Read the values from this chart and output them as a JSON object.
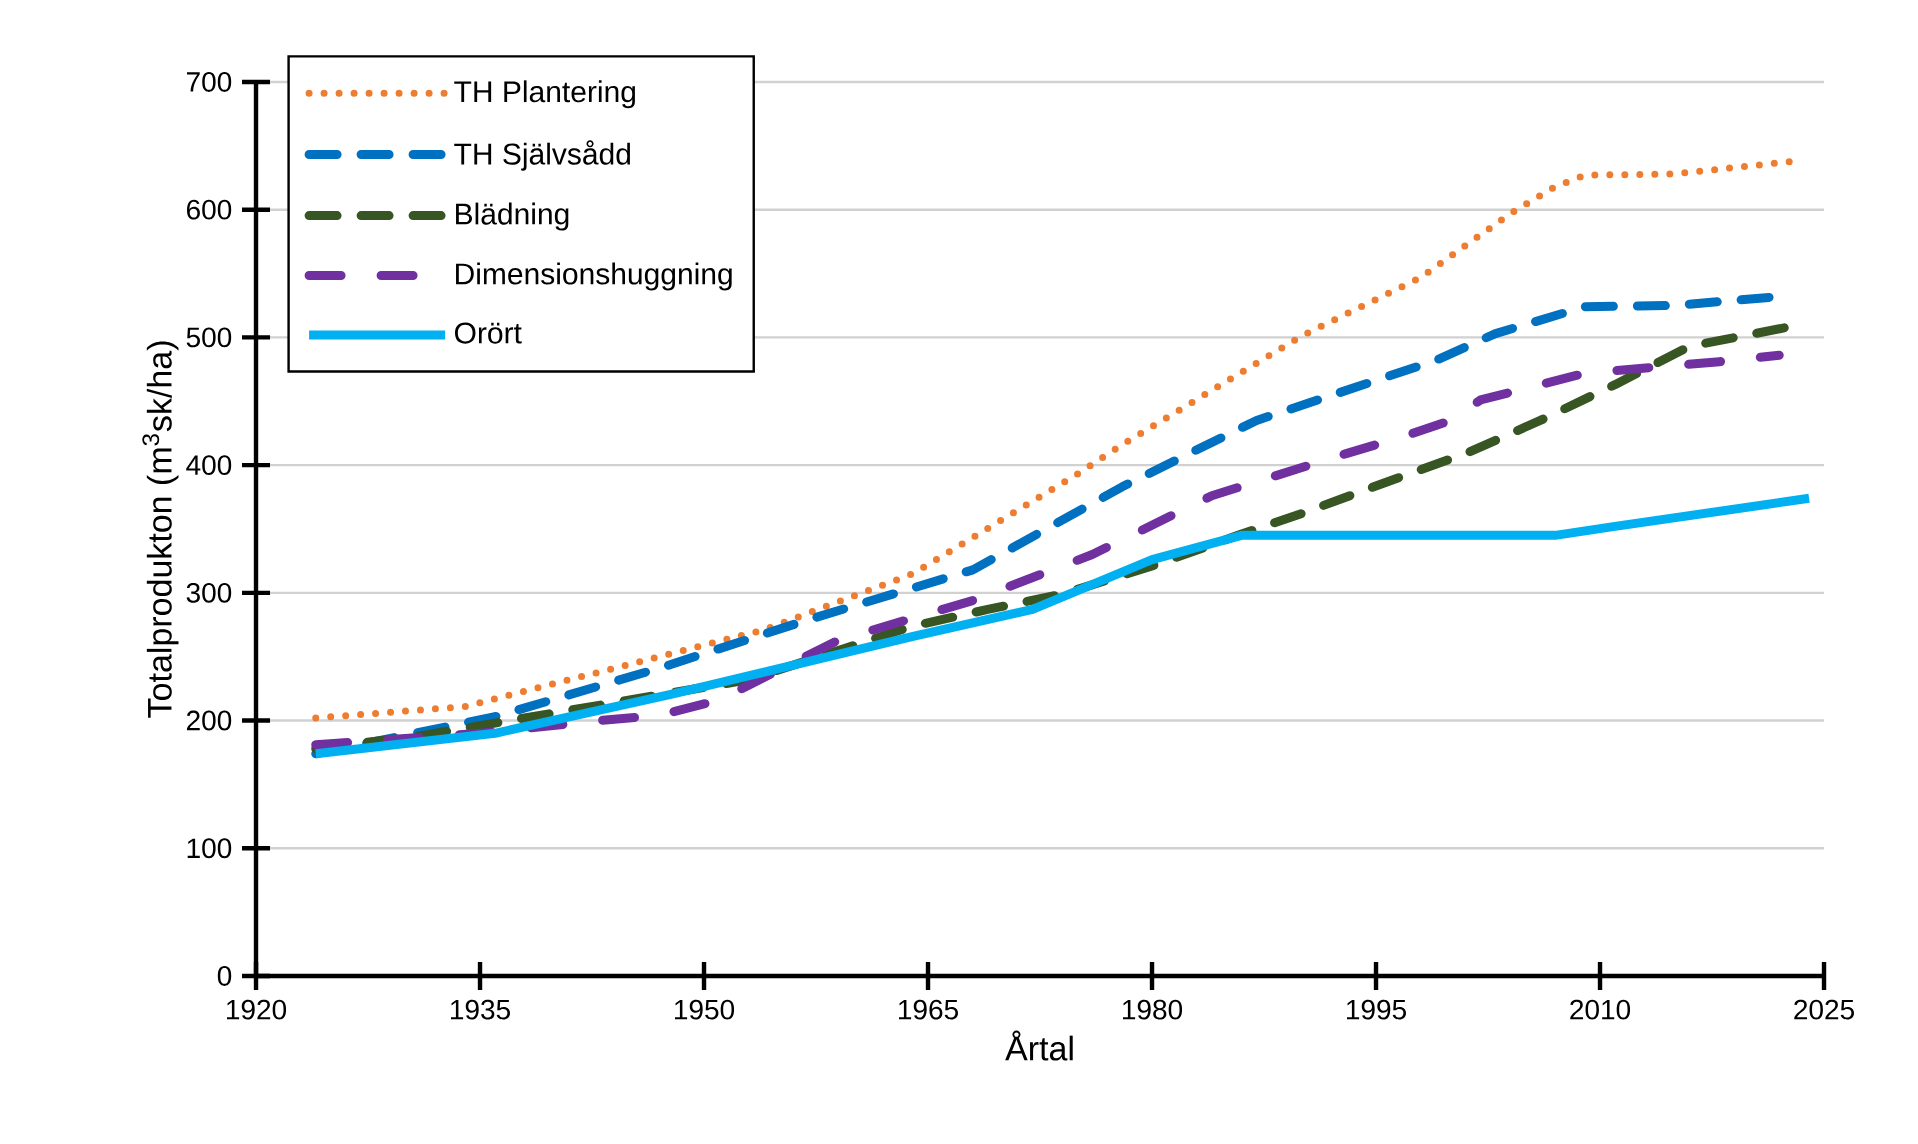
{
  "chart_data": {
    "type": "line",
    "xlabel": "Årtal",
    "ylabel": "Totalprodukton (m$^{3}$sk/ha)",
    "xlim": [
      1920,
      2025
    ],
    "xticks": [
      1920,
      1935,
      1950,
      1965,
      1980,
      1995,
      2010,
      2025
    ],
    "ylim": [
      0,
      700
    ],
    "yticks": [
      0,
      100,
      200,
      300,
      400,
      500,
      600,
      700
    ],
    "grid": "y",
    "legend": "top left",
    "marker": "none",
    "series": [
      {
        "name": "TH Plantering",
        "color": "#ed7d31",
        "line_style": "dotted",
        "x": [
          1924,
          1934,
          1943,
          1954,
          1964,
          1975,
          1978,
          1990,
          1998,
          2004,
          2007,
          2009,
          2015,
          2023
        ],
        "values": [
          202,
          211,
          238,
          271,
          315,
          393,
          416,
          501,
          547,
          597,
          618,
          627,
          628,
          638
        ]
      },
      {
        "name": "TH Självsådd",
        "color": "#0070c0",
        "line_style": "dashed",
        "x": [
          1924,
          1936,
          1947,
          1957,
          1968,
          1978,
          1983,
          1987,
          1999,
          2003,
          2009,
          2015,
          2022
        ],
        "values": [
          174,
          203,
          241,
          279,
          318,
          383,
          412,
          435,
          482,
          503,
          524,
          525,
          532
        ]
      },
      {
        "name": "Blädning",
        "color": "#375623",
        "line_style": "dashed",
        "x": [
          1924,
          1931,
          1953,
          1964,
          1969,
          1974,
          1980,
          1986,
          1990,
          1996,
          2001,
          2006,
          2011,
          2016,
          2023
        ],
        "values": [
          178,
          188,
          232,
          274,
          287,
          299,
          321,
          346,
          362,
          388,
          409,
          435,
          463,
          493,
          509
        ]
      },
      {
        "name": "Dimensionshuggning",
        "color": "#7030a0",
        "line_style": "dashdot",
        "x": [
          1924,
          1935,
          1943,
          1947,
          1951,
          1959,
          1968,
          1976,
          1984,
          1993,
          1997,
          2000,
          2002,
          2005,
          2009,
          2018,
          2022
        ],
        "values": [
          181,
          190,
          200,
          204,
          216,
          263,
          294,
          330,
          376,
          409,
          423,
          435,
          451,
          460,
          472,
          481,
          486
        ]
      },
      {
        "name": "Orört",
        "color": "#00b0f0",
        "line_style": "solid",
        "x": [
          1924,
          1936,
          1948,
          1964,
          1972,
          1980,
          1986,
          2007,
          2011,
          2024
        ],
        "values": [
          174,
          190,
          221,
          266,
          287,
          326,
          345,
          345,
          352,
          374
        ]
      }
    ]
  }
}
